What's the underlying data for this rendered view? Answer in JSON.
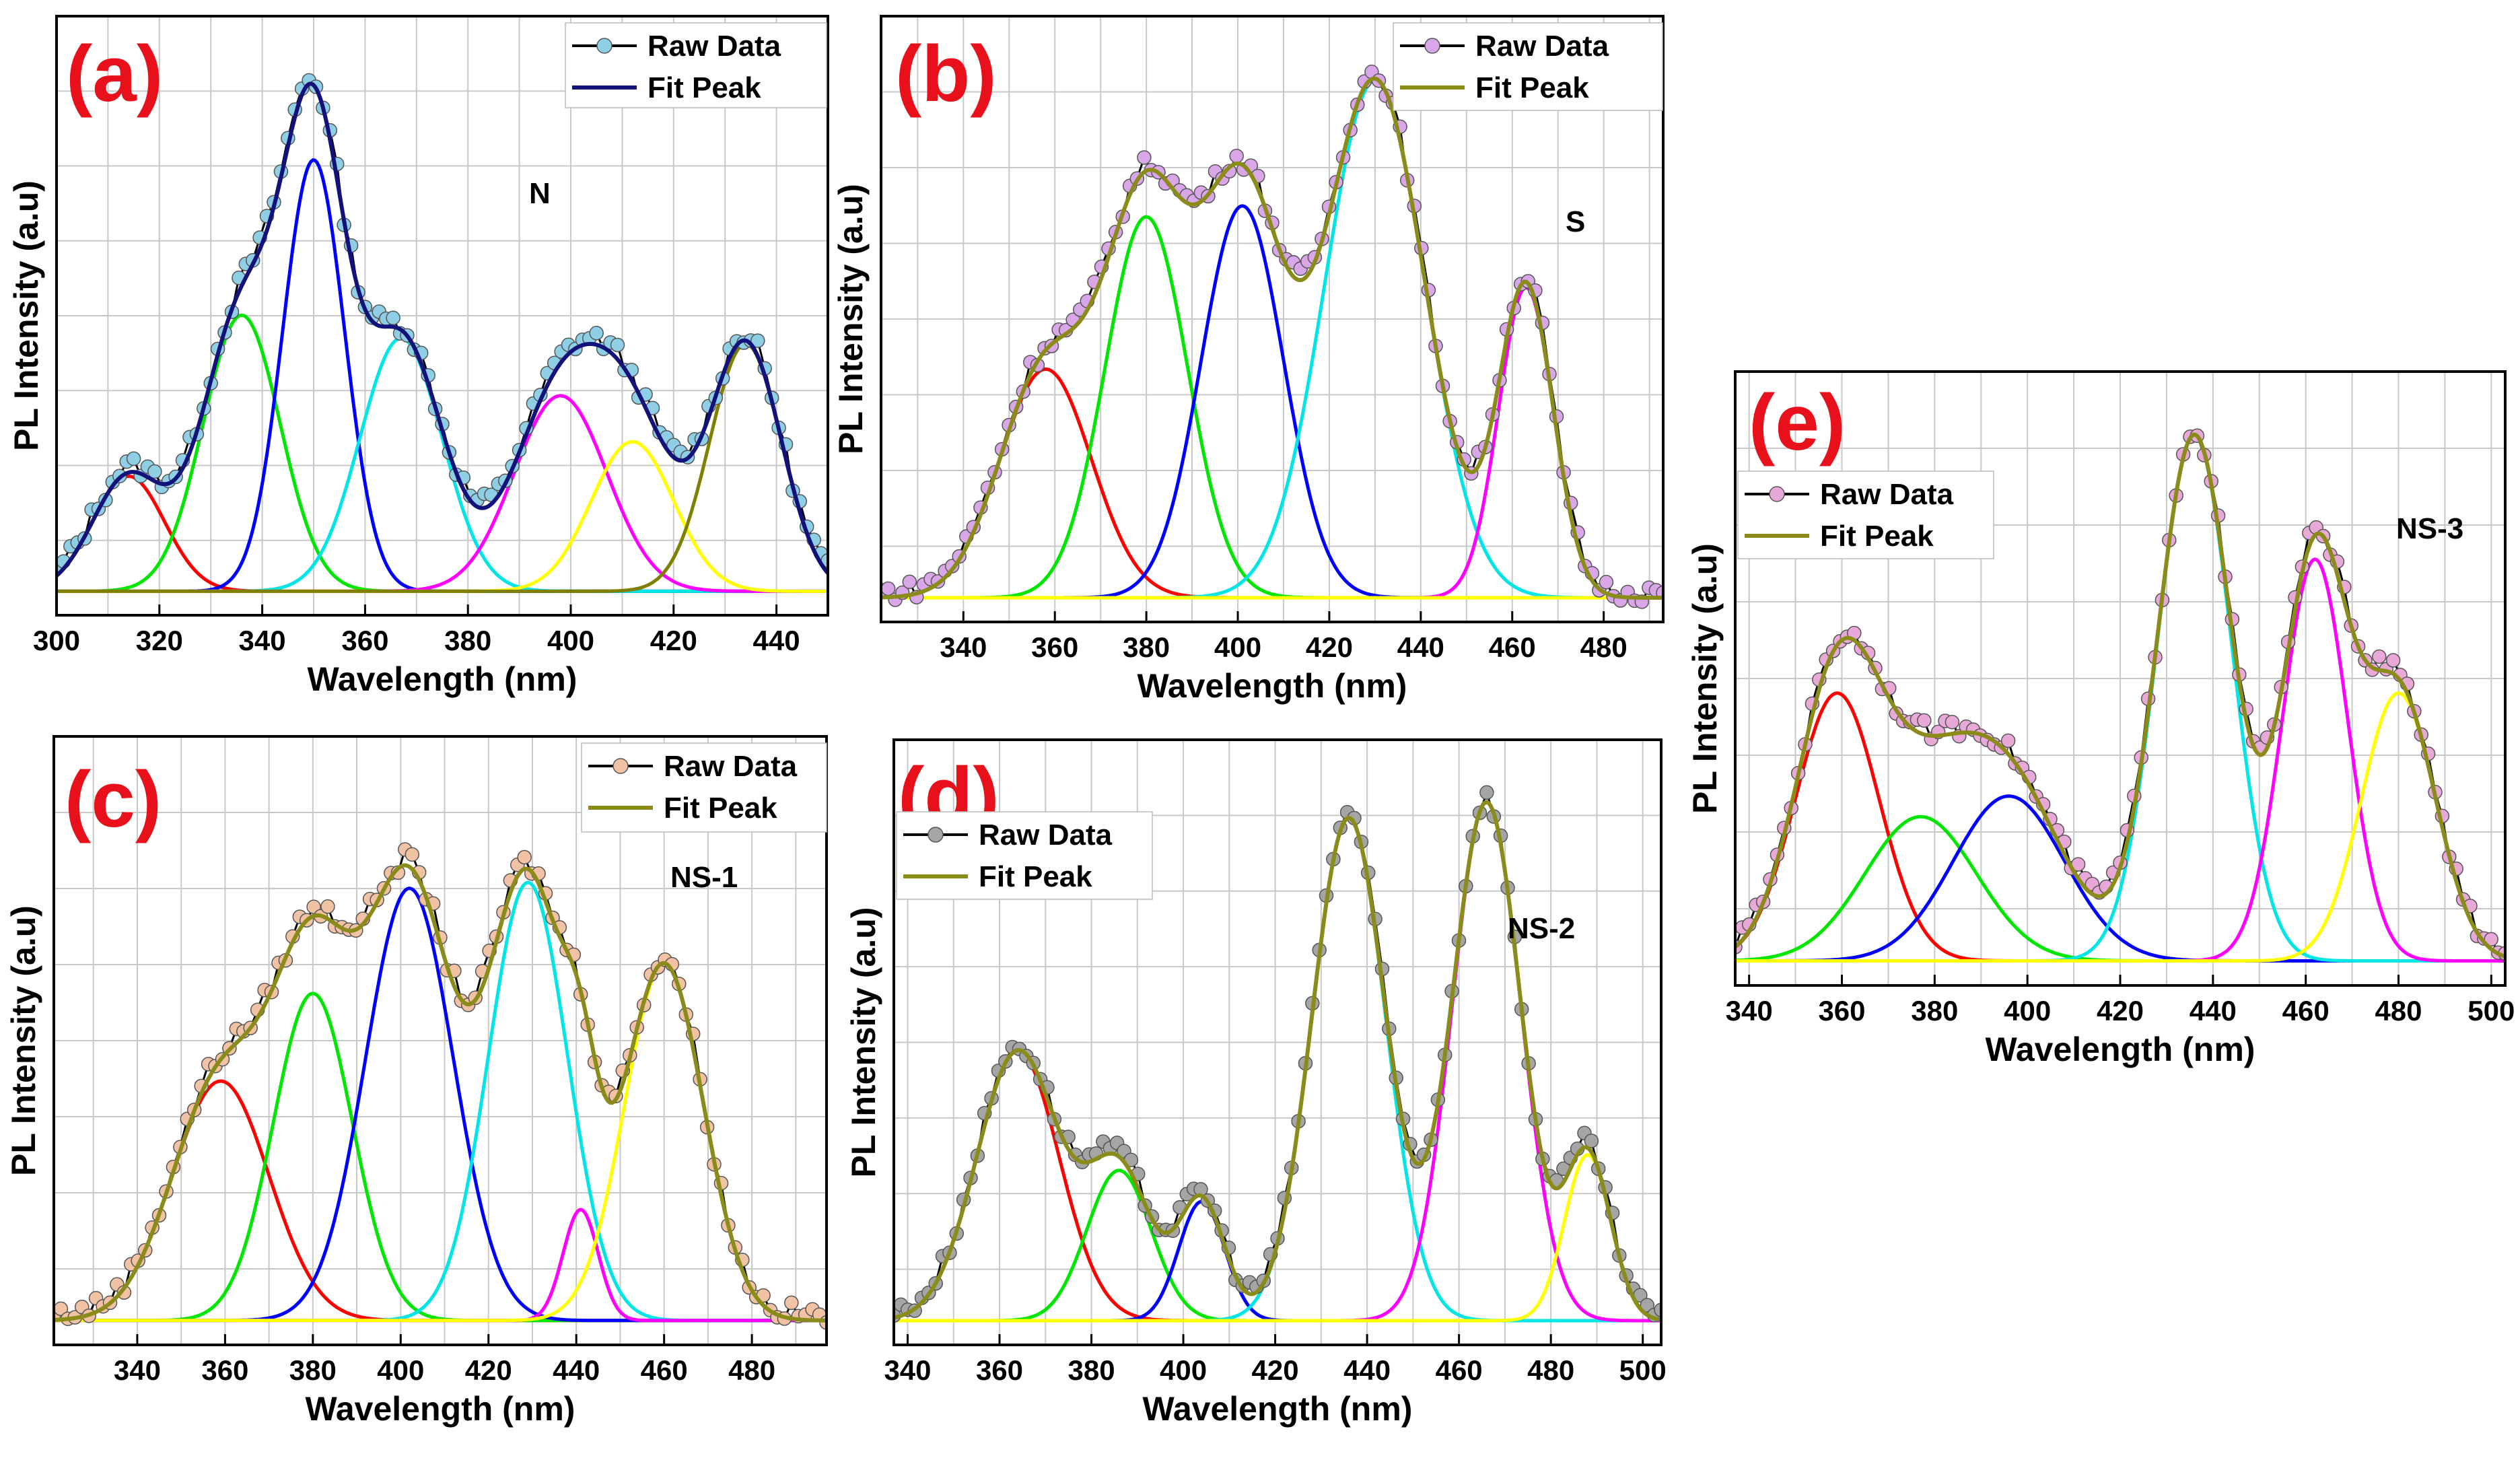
{
  "chart_data": [
    {
      "id": "a",
      "type": "line",
      "panel_label": "(a)",
      "sample_label": "N",
      "xlabel": "Wavelength (nm)",
      "ylabel": "PL Intensity (a.u)",
      "xlim": [
        300,
        450
      ],
      "ylim": [
        0,
        1.0
      ],
      "xticks": [
        300,
        320,
        340,
        360,
        380,
        400,
        420,
        440
      ],
      "legend": [
        {
          "label": "Raw Data",
          "kind": "raw"
        },
        {
          "label": "Fit Peak",
          "kind": "fit"
        }
      ],
      "raw_color": "#8ecfe6",
      "fit_color": "#12127a",
      "peaks": [
        {
          "center": 314,
          "height": 0.2,
          "sigma": 7,
          "color": "#ff0000"
        },
        {
          "center": 336,
          "height": 0.48,
          "sigma": 7.5,
          "color": "#00e600"
        },
        {
          "center": 350,
          "height": 0.75,
          "sigma": 6,
          "color": "#0000ff"
        },
        {
          "center": 367,
          "height": 0.44,
          "sigma": 8,
          "color": "#00e5e5"
        },
        {
          "center": 398,
          "height": 0.34,
          "sigma": 9,
          "color": "#ff00ff"
        },
        {
          "center": 412,
          "height": 0.26,
          "sigma": 8,
          "color": "#ffff00"
        },
        {
          "center": 434,
          "height": 0.43,
          "sigma": 7,
          "color": "#808000"
        }
      ]
    },
    {
      "id": "b",
      "type": "line",
      "panel_label": "(b)",
      "sample_label": "S",
      "xlabel": "Wavelength (nm)",
      "ylabel": "PL Intensity (a.u)",
      "xlim": [
        322,
        493
      ],
      "ylim": [
        0,
        1.0
      ],
      "xticks": [
        340,
        360,
        380,
        400,
        420,
        440,
        460,
        480
      ],
      "legend": [
        {
          "label": "Raw Data",
          "kind": "raw"
        },
        {
          "label": "Fit Peak",
          "kind": "fit"
        }
      ],
      "raw_color": "#d9a6e8",
      "fit_color": "#8b8b1a",
      "peaks": [
        {
          "center": 358,
          "height": 0.42,
          "sigma": 10,
          "color": "#ff0000"
        },
        {
          "center": 380,
          "height": 0.7,
          "sigma": 9,
          "color": "#00e600"
        },
        {
          "center": 401,
          "height": 0.72,
          "sigma": 9,
          "color": "#0000ff"
        },
        {
          "center": 430,
          "height": 0.95,
          "sigma": 11,
          "color": "#00e5e5"
        },
        {
          "center": 463,
          "height": 0.57,
          "sigma": 6,
          "color": "#ff00ff"
        },
        {
          "center": 440,
          "height": 0.0,
          "sigma": 10,
          "color": "#ffff00"
        }
      ]
    },
    {
      "id": "c",
      "type": "line",
      "panel_label": "(c)",
      "sample_label": "NS-1",
      "xlabel": "Wavelength (nm)",
      "ylabel": "PL Intensity (a.u)",
      "xlim": [
        321,
        497
      ],
      "ylim": [
        0,
        1.0
      ],
      "xticks": [
        340,
        360,
        380,
        400,
        420,
        440,
        460,
        480
      ],
      "legend": [
        {
          "label": "Raw Data",
          "kind": "raw"
        },
        {
          "label": "Fit Peak",
          "kind": "fit"
        }
      ],
      "raw_color": "#f2c2a5",
      "fit_color": "#8b8b1a",
      "peaks": [
        {
          "center": 359,
          "height": 0.41,
          "sigma": 11,
          "color": "#ff0000"
        },
        {
          "center": 380,
          "height": 0.56,
          "sigma": 9,
          "color": "#00e600"
        },
        {
          "center": 402,
          "height": 0.74,
          "sigma": 10,
          "color": "#0000ff"
        },
        {
          "center": 429,
          "height": 0.75,
          "sigma": 9,
          "color": "#00e5e5"
        },
        {
          "center": 441,
          "height": 0.19,
          "sigma": 4,
          "color": "#ff00ff"
        },
        {
          "center": 460,
          "height": 0.61,
          "sigma": 9,
          "color": "#ffff00"
        }
      ]
    },
    {
      "id": "d",
      "type": "line",
      "panel_label": "(d)",
      "sample_label": "NS-2",
      "xlabel": "Wavelength (nm)",
      "ylabel": "PL Intensity (a.u)",
      "xlim": [
        337,
        504
      ],
      "ylim": [
        0,
        1.0
      ],
      "xticks": [
        340,
        360,
        380,
        400,
        420,
        440,
        460,
        480,
        500
      ],
      "legend": [
        {
          "label": "Raw Data",
          "kind": "raw"
        },
        {
          "label": "Fit Peak",
          "kind": "fit"
        }
      ],
      "raw_color": "#a5a5a5",
      "fit_color": "#8b8b1a",
      "peaks": [
        {
          "center": 364,
          "height": 0.52,
          "sigma": 9,
          "color": "#ff0000"
        },
        {
          "center": 386,
          "height": 0.29,
          "sigma": 7,
          "color": "#00e600"
        },
        {
          "center": 404,
          "height": 0.23,
          "sigma": 5,
          "color": "#0000ff"
        },
        {
          "center": 436,
          "height": 0.97,
          "sigma": 8,
          "color": "#00e5e5"
        },
        {
          "center": 466,
          "height": 1.0,
          "sigma": 7.5,
          "color": "#ff00ff"
        },
        {
          "center": 488,
          "height": 0.32,
          "sigma": 5,
          "color": "#ffff00"
        }
      ]
    },
    {
      "id": "e",
      "type": "line",
      "panel_label": "(e)",
      "sample_label": "NS-3",
      "xlabel": "Wavelength (nm)",
      "ylabel": "PL Intensity (a.u)",
      "xlim": [
        337,
        503
      ],
      "ylim": [
        0,
        1.0
      ],
      "xticks": [
        340,
        360,
        380,
        400,
        420,
        440,
        460,
        480,
        500
      ],
      "legend": [
        {
          "label": "Raw Data",
          "kind": "raw"
        },
        {
          "label": "Fit Peak",
          "kind": "fit"
        }
      ],
      "raw_color": "#e8a8d8",
      "fit_color": "#8b8b1a",
      "peaks": [
        {
          "center": 359,
          "height": 0.52,
          "sigma": 9,
          "color": "#ff0000"
        },
        {
          "center": 377,
          "height": 0.28,
          "sigma": 12,
          "color": "#00e600"
        },
        {
          "center": 396,
          "height": 0.32,
          "sigma": 12,
          "color": "#0000ff"
        },
        {
          "center": 436,
          "height": 1.02,
          "sigma": 8,
          "color": "#00e5e5"
        },
        {
          "center": 462,
          "height": 0.78,
          "sigma": 7,
          "color": "#ff00ff"
        },
        {
          "center": 480,
          "height": 0.52,
          "sigma": 8,
          "color": "#ffff00"
        }
      ]
    }
  ]
}
